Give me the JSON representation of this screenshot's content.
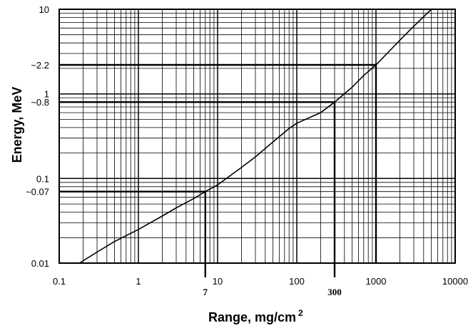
{
  "chart_data": {
    "type": "line",
    "title": "",
    "xlabel": "Range, mg/cm",
    "xlabel_superscript": "2",
    "ylabel": "Energy, MeV",
    "xscale": "log",
    "yscale": "log",
    "xlim": [
      0.1,
      10000
    ],
    "ylim": [
      0.01,
      10
    ],
    "grid": true,
    "x_tick_labels": [
      "0.1",
      "1",
      "10",
      "100",
      "1000",
      "10000"
    ],
    "y_tick_labels": [
      "0.01",
      "0.1",
      "1",
      "10"
    ],
    "x_annotations": [
      {
        "label": "7",
        "x": 7,
        "y": 0.07
      },
      {
        "label": "300",
        "x": 300,
        "y": 0.8
      },
      {
        "label": "1000",
        "x": 1000,
        "y": 2.2
      }
    ],
    "y_annotations": [
      {
        "label": "~0.07",
        "y": 0.07
      },
      {
        "label": "~0.8",
        "y": 0.8
      },
      {
        "label": "~2.2",
        "y": 2.2
      }
    ],
    "series": [
      {
        "x": [
          0.18,
          0.3,
          0.5,
          1,
          2,
          3,
          5,
          7,
          10,
          20,
          30,
          50,
          80,
          100,
          200,
          300,
          500,
          700,
          1000,
          2000,
          3000,
          5000
        ],
        "y": [
          0.01,
          0.0135,
          0.018,
          0.025,
          0.036,
          0.045,
          0.058,
          0.07,
          0.084,
          0.135,
          0.18,
          0.27,
          0.39,
          0.45,
          0.6,
          0.8,
          1.2,
          1.65,
          2.2,
          4.3,
          6.3,
          10.0
        ]
      }
    ]
  }
}
